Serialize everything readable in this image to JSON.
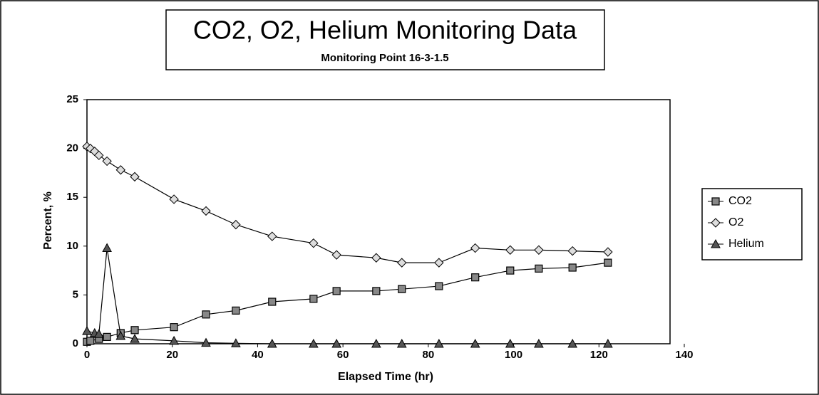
{
  "chart_data": {
    "type": "line",
    "title": "CO2, O2, Helium Monitoring Data",
    "subtitle": "Monitoring Point 16-3-1.5",
    "x_label": "Elapsed Time (hr)",
    "y_label": "Percent, %",
    "xlim": [
      0,
      140
    ],
    "xticks": [
      0,
      20,
      40,
      60,
      80,
      100,
      120,
      140
    ],
    "ylim": [
      0,
      25
    ],
    "yticks": [
      0,
      5,
      10,
      15,
      20,
      25
    ],
    "legend": "right",
    "series": [
      {
        "name": "CO2",
        "color": "#000000",
        "marker": "square",
        "x": [
          0,
          0.8,
          2.8,
          4.7,
          7.9,
          11.2,
          20.4,
          27.9,
          34.9,
          43.4,
          53.1,
          58.5,
          67.8,
          73.8,
          82.5,
          91,
          99.2,
          105.9,
          113.8,
          122.1
        ],
        "values": [
          0.2,
          0.3,
          0.5,
          0.7,
          1.1,
          1.4,
          1.7,
          3.0,
          3.4,
          4.3,
          4.6,
          5.4,
          5.4,
          5.6,
          5.9,
          6.8,
          7.5,
          7.7,
          7.8,
          8.3
        ]
      },
      {
        "name": "O2",
        "color": "#000000",
        "marker": "diamond",
        "x": [
          0,
          0.8,
          1.8,
          2.8,
          4.7,
          7.9,
          11.2,
          20.4,
          27.9,
          34.9,
          43.4,
          53.1,
          58.5,
          67.8,
          73.8,
          82.5,
          91,
          99.2,
          105.9,
          113.8,
          122.1
        ],
        "values": [
          20.2,
          20.0,
          19.7,
          19.3,
          18.7,
          17.8,
          17.1,
          14.8,
          13.6,
          12.2,
          11.0,
          10.3,
          9.1,
          8.8,
          8.3,
          8.3,
          9.8,
          9.6,
          9.6,
          9.5,
          9.4
        ]
      },
      {
        "name": "Helium",
        "color": "#000000",
        "marker": "triangle",
        "x": [
          0,
          1.8,
          2.8,
          4.7,
          7.9,
          11.2,
          20.4,
          27.9,
          34.9,
          43.4,
          53.1,
          58.5,
          67.8,
          73.8,
          82.5,
          91,
          99.2,
          105.9,
          113.8,
          122.1
        ],
        "values": [
          1.3,
          1.1,
          1.0,
          9.8,
          0.8,
          0.5,
          0.3,
          0.1,
          0.05,
          0,
          0,
          0,
          0,
          0,
          0,
          0,
          0,
          0,
          0,
          0
        ]
      }
    ]
  }
}
